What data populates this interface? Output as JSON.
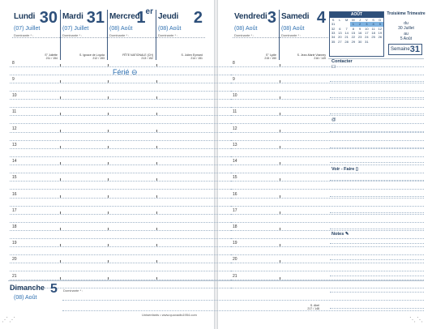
{
  "left_days": [
    {
      "name": "Lundi",
      "num": "30",
      "sub": "(07) Juillet",
      "label": "Dominante * :",
      "note": "S° Juliette\n211 / 154"
    },
    {
      "name": "Mardi",
      "num": "31",
      "sub": "(07) Juillet",
      "label": "Dominante * :",
      "note": "S. Ignace de Loyola\n212 / 153"
    },
    {
      "name": "Mercredi",
      "num": "1",
      "numsup": "er",
      "sub": "(08) Août",
      "label": "Dominante * :",
      "note": "FÊTE NATIONALE (CH)\n213 / 152"
    },
    {
      "name": "Jeudi",
      "num": "2",
      "sub": "(08) Août",
      "label": "Dominante * :",
      "note": "S. Julien Eymard\n214 / 151"
    }
  ],
  "right_days": [
    {
      "name": "Vendredi",
      "num": "3",
      "sub": "(08) Août",
      "label": "Dominante * :",
      "note": "S° Lydie\n215 / 150"
    },
    {
      "name": "Samedi",
      "num": "4",
      "sub": "(08) Août",
      "label": "Dominante * :",
      "note": "S. Jean-Marie Vianney\n216 / 149"
    }
  ],
  "hours": [
    "8",
    "9",
    "10",
    "11",
    "12",
    "13",
    "14",
    "15",
    "16",
    "17",
    "18",
    "19",
    "20",
    "21"
  ],
  "ferie": "Férié",
  "sunday": {
    "name": "Dimanche",
    "num": "5",
    "sub": "(08) Août",
    "label": "Dominante * :",
    "note": "S. Abel\n217 / 148"
  },
  "footer": "Unisenfants • www.quovadis1954.com",
  "calendar": {
    "title": "AOÛT",
    "head": [
      "S",
      "L",
      "M",
      "M",
      "J",
      "V",
      "S",
      "D"
    ],
    "rows": [
      [
        "31",
        "",
        "",
        "1",
        "2",
        "3",
        "4",
        "5"
      ],
      [
        "32",
        "6",
        "7",
        "8",
        "9",
        "10",
        "11",
        "12"
      ],
      [
        "33",
        "13",
        "14",
        "15",
        "16",
        "17",
        "18",
        "19"
      ],
      [
        "34",
        "20",
        "21",
        "22",
        "23",
        "24",
        "25",
        "26"
      ],
      [
        "35",
        "27",
        "28",
        "29",
        "30",
        "31",
        "",
        ""
      ]
    ]
  },
  "trimestre": {
    "title": "Troisième Trimestre",
    "du": "du",
    "from": "30 Juillet",
    "au": "au",
    "to": "5 Août"
  },
  "semaine": {
    "label": "Semaine",
    "num": "31"
  },
  "sections": {
    "contacter": "Contacter",
    "voir_faire": "Voir - Faire",
    "notes": "Notes"
  }
}
